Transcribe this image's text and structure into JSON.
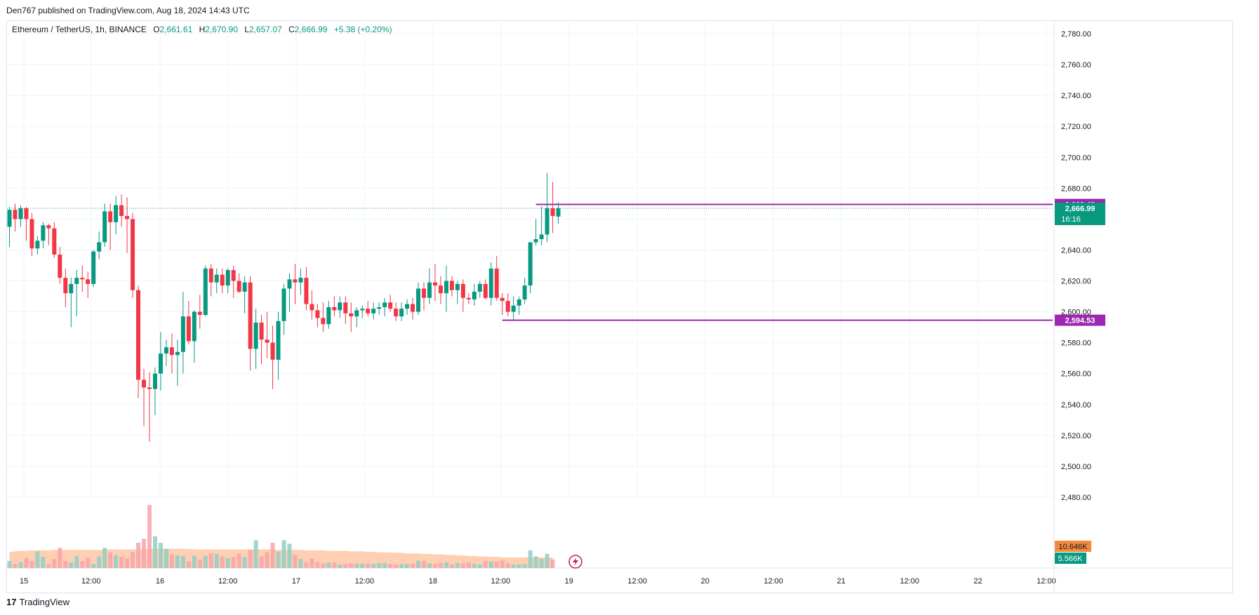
{
  "header": {
    "published": "Den767 published on TradingView.com, Aug 18, 2024 14:43 UTC"
  },
  "legend": {
    "symbol": "Ethereum / TetherUS, 1h, BINANCE",
    "o_label": "O",
    "o_val": "2,661.61",
    "h_label": "H",
    "h_val": "2,670.90",
    "l_label": "L",
    "l_val": "2,657.07",
    "c_label": "C",
    "c_val": "2,666.99",
    "change": "+5.38 (+0.20%)"
  },
  "footer": {
    "logo_glyph": "17",
    "brand": "TradingView"
  },
  "colors": {
    "up": "#089981",
    "down": "#f23645",
    "level": "#9c27b0",
    "vol_up": "#8fcfc6",
    "vol_down": "#f7a4aa",
    "vol_ma": "#ffbf99",
    "vol_ma_badge": "#f48a3c"
  },
  "chart_data": {
    "type": "candlestick",
    "symbol": "Ethereum / TetherUS",
    "interval": "1h",
    "exchange": "BINANCE",
    "y_ticks": [
      "2,480.00",
      "2,500.00",
      "2,520.00",
      "2,540.00",
      "2,560.00",
      "2,580.00",
      "2,600.00",
      "2,620.00",
      "2,640.00",
      "2,660.00",
      "2,680.00",
      "2,700.00",
      "2,720.00",
      "2,740.00",
      "2,760.00",
      "2,780.00"
    ],
    "x_ticks": [
      "15",
      "12:00",
      "16",
      "12:00",
      "17",
      "12:00",
      "18",
      "12:00",
      "19",
      "12:00",
      "20",
      "12:00",
      "21",
      "12:00",
      "22",
      "12:00"
    ],
    "ylim": [
      2470,
      2790
    ],
    "grid": true,
    "candles": [
      [
        2655,
        2668,
        2642,
        2666
      ],
      [
        2666,
        2670,
        2652,
        2660
      ],
      [
        2660,
        2669,
        2655,
        2667
      ],
      [
        2667,
        2668,
        2646,
        2660
      ],
      [
        2660,
        2664,
        2636,
        2641
      ],
      [
        2641,
        2649,
        2637,
        2646
      ],
      [
        2646,
        2658,
        2641,
        2656
      ],
      [
        2656,
        2657,
        2643,
        2654
      ],
      [
        2654,
        2658,
        2635,
        2637
      ],
      [
        2637,
        2642,
        2618,
        2622
      ],
      [
        2622,
        2628,
        2603,
        2612
      ],
      [
        2612,
        2622,
        2590,
        2618
      ],
      [
        2618,
        2627,
        2597,
        2622
      ],
      [
        2622,
        2630,
        2613,
        2621
      ],
      [
        2621,
        2626,
        2609,
        2618
      ],
      [
        2618,
        2640,
        2616,
        2639
      ],
      [
        2639,
        2652,
        2634,
        2645
      ],
      [
        2645,
        2670,
        2642,
        2665
      ],
      [
        2665,
        2670,
        2640,
        2658
      ],
      [
        2658,
        2675,
        2650,
        2669
      ],
      [
        2669,
        2676,
        2655,
        2662
      ],
      [
        2662,
        2674,
        2638,
        2660
      ],
      [
        2660,
        2664,
        2609,
        2614
      ],
      [
        2614,
        2617,
        2544,
        2556
      ],
      [
        2556,
        2563,
        2526,
        2551
      ],
      [
        2551,
        2561,
        2516,
        2550
      ],
      [
        2550,
        2564,
        2533,
        2560
      ],
      [
        2560,
        2587,
        2549,
        2573
      ],
      [
        2573,
        2582,
        2565,
        2577
      ],
      [
        2577,
        2586,
        2560,
        2572
      ],
      [
        2572,
        2582,
        2552,
        2574
      ],
      [
        2574,
        2613,
        2560,
        2597
      ],
      [
        2597,
        2607,
        2579,
        2581
      ],
      [
        2581,
        2601,
        2567,
        2600
      ],
      [
        2600,
        2611,
        2589,
        2598
      ],
      [
        2598,
        2630,
        2597,
        2628
      ],
      [
        2628,
        2631,
        2610,
        2619
      ],
      [
        2619,
        2628,
        2612,
        2624
      ],
      [
        2624,
        2628,
        2612,
        2617
      ],
      [
        2617,
        2628,
        2612,
        2627
      ],
      [
        2627,
        2630,
        2609,
        2620
      ],
      [
        2620,
        2625,
        2612,
        2613
      ],
      [
        2613,
        2623,
        2599,
        2619
      ],
      [
        2619,
        2623,
        2562,
        2576
      ],
      [
        2576,
        2602,
        2563,
        2593
      ],
      [
        2593,
        2598,
        2566,
        2582
      ],
      [
        2582,
        2600,
        2570,
        2580
      ],
      [
        2580,
        2591,
        2550,
        2569
      ],
      [
        2569,
        2600,
        2556,
        2594
      ],
      [
        2594,
        2618,
        2585,
        2615
      ],
      [
        2615,
        2625,
        2600,
        2621
      ],
      [
        2621,
        2631,
        2605,
        2619
      ],
      [
        2619,
        2628,
        2611,
        2622
      ],
      [
        2622,
        2629,
        2601,
        2605
      ],
      [
        2605,
        2614,
        2595,
        2601
      ],
      [
        2601,
        2605,
        2590,
        2596
      ],
      [
        2596,
        2606,
        2587,
        2592
      ],
      [
        2592,
        2607,
        2589,
        2603
      ],
      [
        2603,
        2610,
        2597,
        2601
      ],
      [
        2601,
        2610,
        2596,
        2606
      ],
      [
        2606,
        2610,
        2592,
        2599
      ],
      [
        2599,
        2606,
        2587,
        2597
      ],
      [
        2597,
        2603,
        2590,
        2601
      ],
      [
        2601,
        2604,
        2596,
        2602
      ],
      [
        2602,
        2607,
        2597,
        2599
      ],
      [
        2599,
        2606,
        2595,
        2602
      ],
      [
        2602,
        2606,
        2598,
        2603
      ],
      [
        2603,
        2609,
        2597,
        2606
      ],
      [
        2606,
        2611,
        2600,
        2602
      ],
      [
        2602,
        2606,
        2594,
        2597
      ],
      [
        2597,
        2606,
        2594,
        2602
      ],
      [
        2602,
        2608,
        2598,
        2605
      ],
      [
        2605,
        2609,
        2595,
        2600
      ],
      [
        2600,
        2619,
        2598,
        2615
      ],
      [
        2615,
        2619,
        2601,
        2609
      ],
      [
        2609,
        2628,
        2605,
        2619
      ],
      [
        2619,
        2631,
        2607,
        2617
      ],
      [
        2617,
        2623,
        2605,
        2612
      ],
      [
        2612,
        2630,
        2600,
        2620
      ],
      [
        2620,
        2623,
        2610,
        2614
      ],
      [
        2614,
        2620,
        2605,
        2618
      ],
      [
        2618,
        2621,
        2600,
        2609
      ],
      [
        2609,
        2612,
        2605,
        2608
      ],
      [
        2608,
        2618,
        2604,
        2613
      ],
      [
        2613,
        2620,
        2609,
        2618
      ],
      [
        2618,
        2621,
        2608,
        2609
      ],
      [
        2609,
        2632,
        2604,
        2628
      ],
      [
        2628,
        2636,
        2607,
        2609
      ],
      [
        2609,
        2612,
        2598,
        2607
      ],
      [
        2607,
        2612,
        2597,
        2600
      ],
      [
        2600,
        2610,
        2595,
        2604
      ],
      [
        2604,
        2610,
        2598,
        2608
      ],
      [
        2608,
        2622,
        2605,
        2617
      ],
      [
        2617,
        2645,
        2612,
        2645
      ],
      [
        2645,
        2660,
        2643,
        2647
      ],
      [
        2647,
        2668,
        2643,
        2650
      ],
      [
        2650,
        2690,
        2645,
        2667
      ],
      [
        2667,
        2684,
        2651,
        2662
      ],
      [
        2661.61,
        2670.9,
        2657.07,
        2666.99
      ]
    ],
    "volume": [
      14,
      8,
      12,
      20,
      14,
      33,
      22,
      8,
      18,
      40,
      14,
      11,
      24,
      14,
      20,
      8,
      23,
      40,
      31,
      25,
      22,
      19,
      32,
      50,
      58,
      125,
      63,
      50,
      38,
      27,
      25,
      24,
      13,
      24,
      17,
      24,
      29,
      28,
      23,
      20,
      22,
      28,
      22,
      36,
      55,
      23,
      31,
      50,
      32,
      55,
      48,
      26,
      18,
      12,
      19,
      12,
      9,
      11,
      11,
      7,
      8,
      9,
      8,
      9,
      9,
      8,
      10,
      10,
      8,
      7,
      8,
      8,
      9,
      14,
      14,
      9,
      8,
      10,
      11,
      7,
      10,
      9,
      11,
      8,
      7,
      14,
      13,
      13,
      15,
      9,
      7,
      7,
      8,
      35,
      23,
      18,
      28,
      17
    ],
    "volume_ma": [
      32,
      33,
      34,
      34,
      35,
      35,
      35,
      35,
      36,
      36,
      36,
      36,
      36,
      36,
      36,
      36,
      36,
      37,
      37,
      37,
      37,
      37,
      37,
      37,
      37,
      38,
      38,
      38,
      38,
      38,
      38,
      38,
      38,
      37,
      37,
      37,
      37,
      37,
      37,
      37,
      37,
      37,
      37,
      37,
      37,
      37,
      37,
      36,
      36,
      36,
      36,
      36,
      36,
      35,
      35,
      35,
      35,
      34,
      34,
      34,
      34,
      33,
      33,
      33,
      32,
      32,
      31,
      31,
      31,
      30,
      30,
      29,
      29,
      29,
      28,
      28,
      27,
      27,
      26,
      26,
      25,
      25,
      24,
      24,
      23,
      23,
      22,
      22,
      21,
      21,
      21,
      21,
      21,
      21,
      21,
      21,
      21,
      21
    ],
    "horizontal_lines": [
      {
        "value": 2669.49,
        "label": "2,669.49",
        "start_index": 94
      },
      {
        "value": 2594.53,
        "label": "2,594.53",
        "start_index": 88
      }
    ],
    "last_price": {
      "value": 2666.99,
      "label": "2,666.99",
      "countdown": "16:16"
    },
    "volume_badges": [
      {
        "label": "10.646K",
        "kind": "ma"
      },
      {
        "label": "5.566K",
        "kind": "last"
      }
    ]
  }
}
